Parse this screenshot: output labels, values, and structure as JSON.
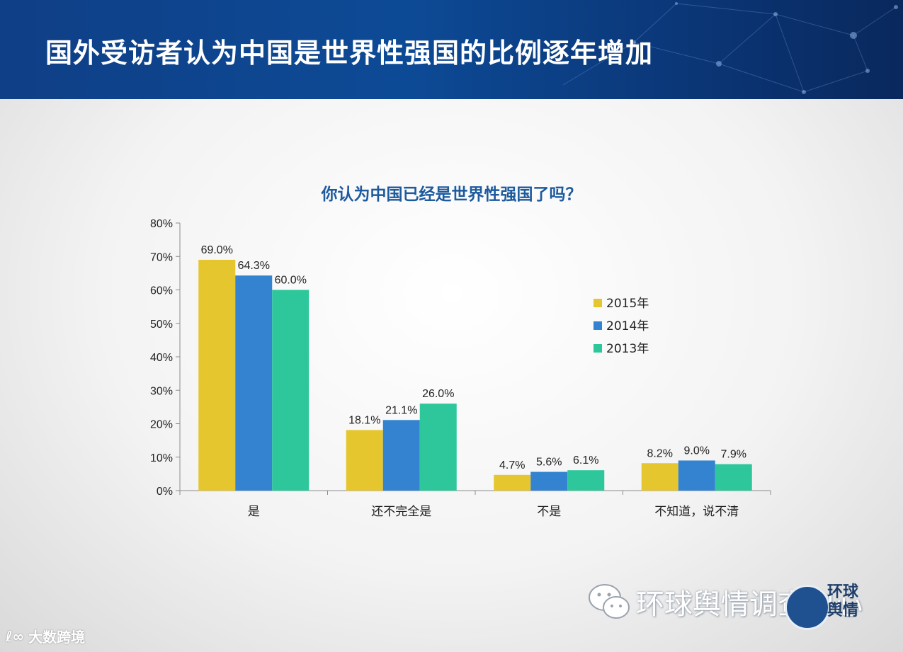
{
  "slide": {
    "title": "国外受访者认为中国是世界性强国的比例逐年增加"
  },
  "chart_data": {
    "type": "bar",
    "title": "你认为中国已经是世界性强国了吗？",
    "categories": [
      "是",
      "还不完全是",
      "不是",
      "不知道，说不清"
    ],
    "series": [
      {
        "name": "2015年",
        "values": [
          69.0,
          18.1,
          4.7,
          8.2
        ],
        "labels": [
          "69.0%",
          "18.1%",
          "4.7%",
          "8.2%"
        ],
        "color": "#e6c62e"
      },
      {
        "name": "2014年",
        "values": [
          64.3,
          21.1,
          5.6,
          9.0
        ],
        "labels": [
          "64.3%",
          "21.1%",
          "5.6%",
          "9.0%"
        ],
        "color": "#3383d0"
      },
      {
        "name": "2013年",
        "values": [
          60.0,
          26.0,
          6.1,
          7.9
        ],
        "labels": [
          "60.0%",
          "26.0%",
          "6.1%",
          "7.9%"
        ],
        "color": "#2ec79b"
      }
    ],
    "yticks": [
      "0%",
      "10%",
      "20%",
      "30%",
      "40%",
      "50%",
      "60%",
      "70%",
      "80%"
    ],
    "ylim": [
      0,
      80
    ],
    "legend_position": "right",
    "grid": false
  },
  "watermarks": {
    "left": "大数跨境",
    "right": "环球舆情调查中心",
    "seal": "环球舆情"
  },
  "colors": {
    "banner": "#0d4a96",
    "title_blue": "#1d5a9e"
  }
}
